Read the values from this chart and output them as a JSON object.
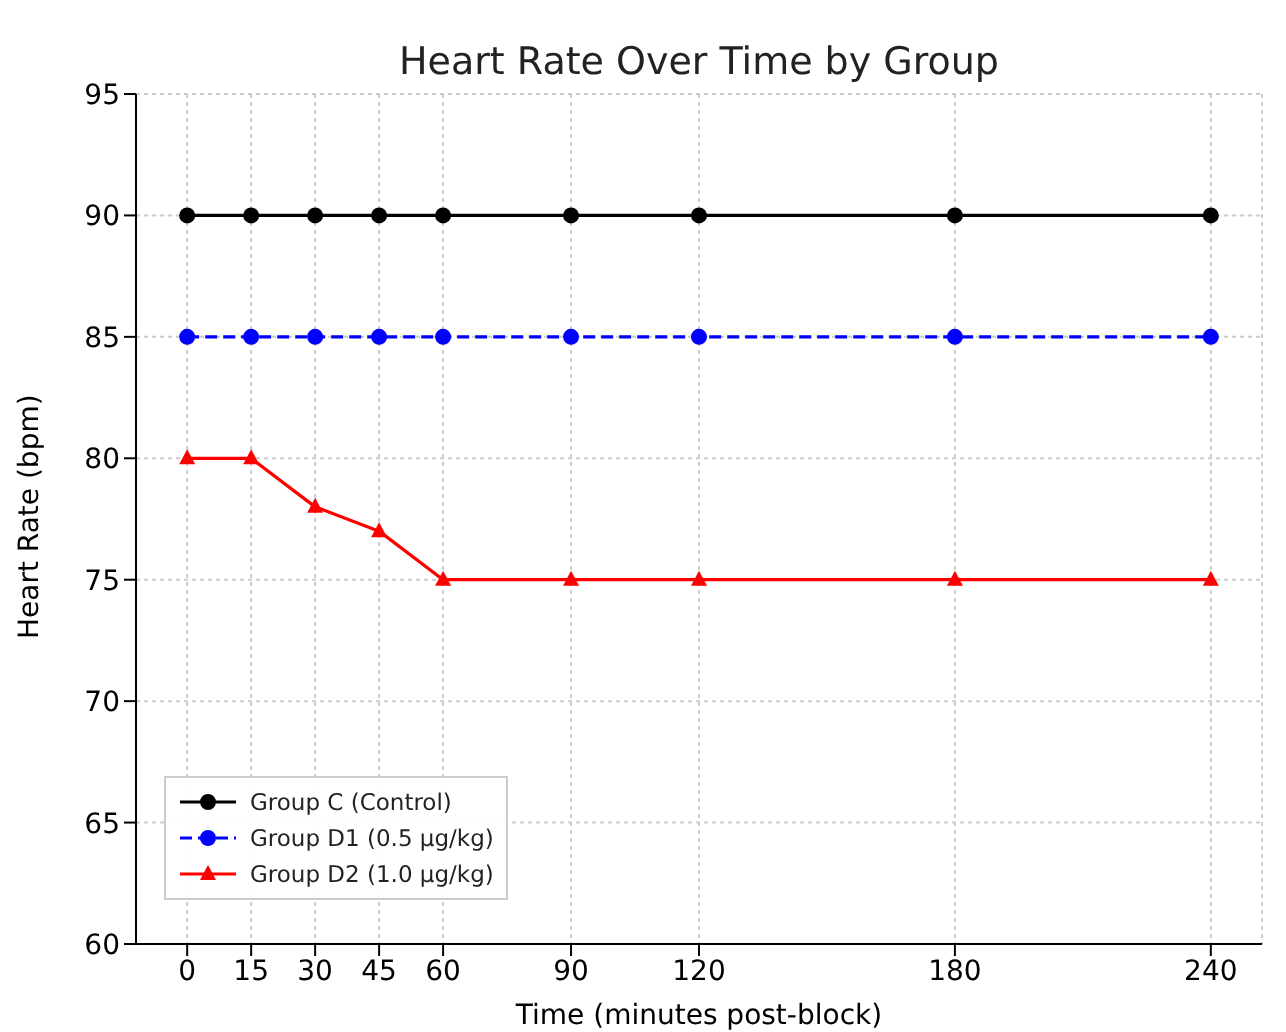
{
  "chart_data": {
    "type": "line",
    "title": "Heart Rate Over Time by Group",
    "xlabel": "Time (minutes post-block)",
    "ylabel": "Heart Rate (bpm)",
    "x": [
      0,
      15,
      30,
      45,
      60,
      90,
      120,
      180,
      240
    ],
    "series": [
      {
        "name": "Group C (Control)",
        "color": "#000000",
        "marker": "circle",
        "line_style": "solid",
        "values": [
          90,
          90,
          90,
          90,
          90,
          90,
          90,
          90,
          90
        ]
      },
      {
        "name": "Group D1 (0.5 μg/kg)",
        "color": "#0000ff",
        "marker": "circle",
        "line_style": "dashed",
        "values": [
          85,
          85,
          85,
          85,
          85,
          85,
          85,
          85,
          85
        ]
      },
      {
        "name": "Group D2 (1.0 μg/kg)",
        "color": "#ff0000",
        "marker": "triangle",
        "line_style": "solid",
        "values": [
          80,
          80,
          78,
          77,
          75,
          75,
          75,
          75,
          75
        ]
      }
    ],
    "xlim": [
      -12,
      252
    ],
    "xticks": [
      0,
      15,
      30,
      45,
      60,
      90,
      120,
      180,
      240
    ],
    "ylim": [
      60,
      95
    ],
    "yticks": [
      60,
      65,
      70,
      75,
      80,
      85,
      90,
      95
    ],
    "grid": true,
    "legend": "bottom left"
  }
}
